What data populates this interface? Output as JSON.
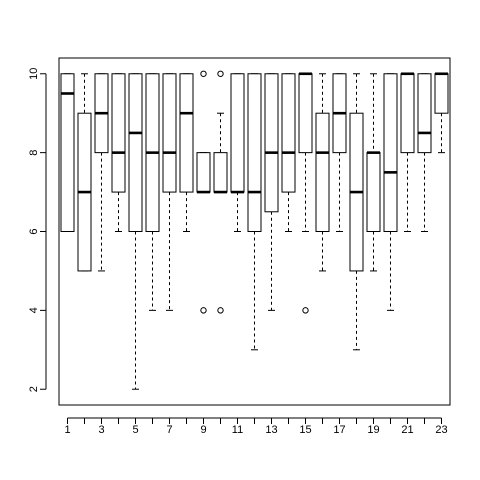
{
  "chart_data": {
    "type": "boxplot",
    "title": "",
    "xlabel": "",
    "ylabel": "",
    "x_tick_labels": [
      "1",
      "3",
      "5",
      "7",
      "9",
      "11",
      "13",
      "15",
      "17",
      "19",
      "21",
      "23"
    ],
    "y_tick_labels": [
      "2",
      "4",
      "6",
      "8",
      "10"
    ],
    "xlim": [
      0.5,
      23.5
    ],
    "ylim": [
      1.6,
      10.4
    ],
    "grid": false,
    "boxes": [
      {
        "group": 1,
        "whisker_low": 6,
        "q1": 6,
        "median": 9.5,
        "q3": 10,
        "whisker_high": 10,
        "outliers": []
      },
      {
        "group": 2,
        "whisker_low": 5,
        "q1": 5,
        "median": 7,
        "q3": 9,
        "whisker_high": 10,
        "outliers": []
      },
      {
        "group": 3,
        "whisker_low": 5,
        "q1": 8,
        "median": 9,
        "q3": 10,
        "whisker_high": 10,
        "outliers": []
      },
      {
        "group": 4,
        "whisker_low": 6,
        "q1": 7,
        "median": 8,
        "q3": 10,
        "whisker_high": 10,
        "outliers": []
      },
      {
        "group": 5,
        "whisker_low": 2,
        "q1": 6,
        "median": 8.5,
        "q3": 10,
        "whisker_high": 10,
        "outliers": []
      },
      {
        "group": 6,
        "whisker_low": 4,
        "q1": 6,
        "median": 8,
        "q3": 10,
        "whisker_high": 10,
        "outliers": []
      },
      {
        "group": 7,
        "whisker_low": 4,
        "q1": 7,
        "median": 8,
        "q3": 10,
        "whisker_high": 10,
        "outliers": []
      },
      {
        "group": 8,
        "whisker_low": 6,
        "q1": 7,
        "median": 9,
        "q3": 10,
        "whisker_high": 10,
        "outliers": []
      },
      {
        "group": 9,
        "whisker_low": 7,
        "q1": 7,
        "median": 7,
        "q3": 8,
        "whisker_high": 8,
        "outliers": [
          4,
          10
        ]
      },
      {
        "group": 10,
        "whisker_low": 7,
        "q1": 7,
        "median": 7,
        "q3": 8,
        "whisker_high": 9,
        "outliers": [
          4,
          10
        ]
      },
      {
        "group": 11,
        "whisker_low": 6,
        "q1": 7,
        "median": 7,
        "q3": 10,
        "whisker_high": 10,
        "outliers": []
      },
      {
        "group": 12,
        "whisker_low": 3,
        "q1": 6,
        "median": 7,
        "q3": 10,
        "whisker_high": 10,
        "outliers": []
      },
      {
        "group": 13,
        "whisker_low": 4,
        "q1": 6.5,
        "median": 8,
        "q3": 10,
        "whisker_high": 10,
        "outliers": []
      },
      {
        "group": 14,
        "whisker_low": 6,
        "q1": 7,
        "median": 8,
        "q3": 10,
        "whisker_high": 10,
        "outliers": []
      },
      {
        "group": 15,
        "whisker_low": 6,
        "q1": 8,
        "median": 10,
        "q3": 10,
        "whisker_high": 10,
        "outliers": [
          4
        ]
      },
      {
        "group": 16,
        "whisker_low": 5,
        "q1": 6,
        "median": 8,
        "q3": 9,
        "whisker_high": 10,
        "outliers": []
      },
      {
        "group": 17,
        "whisker_low": 6,
        "q1": 8,
        "median": 9,
        "q3": 10,
        "whisker_high": 10,
        "outliers": []
      },
      {
        "group": 18,
        "whisker_low": 3,
        "q1": 5,
        "median": 7,
        "q3": 9,
        "whisker_high": 10,
        "outliers": []
      },
      {
        "group": 19,
        "whisker_low": 5,
        "q1": 6,
        "median": 8,
        "q3": 8,
        "whisker_high": 10,
        "outliers": []
      },
      {
        "group": 20,
        "whisker_low": 4,
        "q1": 6,
        "median": 7.5,
        "q3": 10,
        "whisker_high": 10,
        "outliers": []
      },
      {
        "group": 21,
        "whisker_low": 6,
        "q1": 8,
        "median": 10,
        "q3": 10,
        "whisker_high": 10,
        "outliers": []
      },
      {
        "group": 22,
        "whisker_low": 6,
        "q1": 8,
        "median": 8.5,
        "q3": 10,
        "whisker_high": 10,
        "outliers": []
      },
      {
        "group": 23,
        "whisker_low": 8,
        "q1": 9,
        "median": 10,
        "q3": 10,
        "whisker_high": 10,
        "outliers": []
      }
    ]
  }
}
